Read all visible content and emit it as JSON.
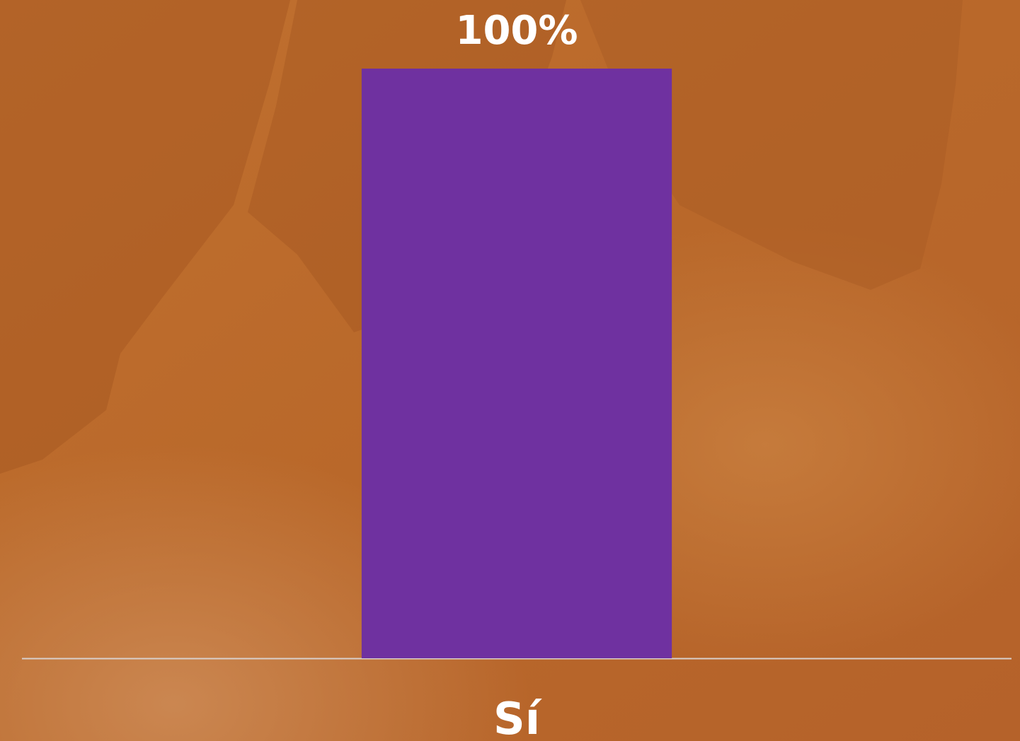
{
  "chart_data": {
    "type": "bar",
    "categories": [
      "Sí"
    ],
    "values": [
      100
    ],
    "value_labels": [
      "100%"
    ],
    "color": "#6f31a0",
    "ylim": [
      0,
      100
    ]
  }
}
